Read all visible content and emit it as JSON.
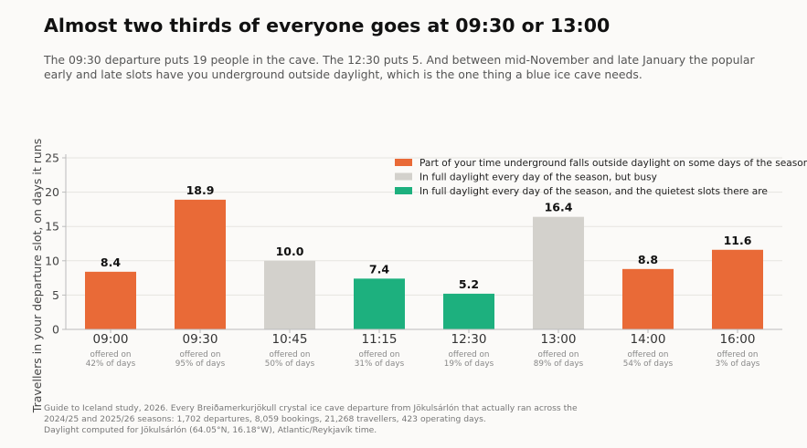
{
  "header": {
    "title": "Almost two thirds of everyone goes at 09:30 or 13:00",
    "subtitle_lines": [
      "The 09:30 departure puts 19 people in the cave. The 12:30 puts 5. And between mid-November and late January the popular",
      "early and late slots have you underground outside daylight, which is the one thing a blue ice cave needs."
    ]
  },
  "footer": {
    "lines": [
      "Guide to Iceland study, 2026. Every Breiðamerkurjökull crystal ice cave departure from Jökulsárlón that actually ran across the",
      "2024/25 and 2025/26 seasons: 1,702 departures, 8,059 bookings, 21,268 travellers, 423 operating days.",
      "Daylight computed for Jökulsárlón (64.05°N, 16.18°W), Atlantic/Reykjavík time."
    ]
  },
  "colors": {
    "outside_daylight": "#e96a37",
    "busy": "#d3d1cc",
    "quiet": "#1db07e",
    "grid": "#e6e4e0",
    "axis": "#bbbbbb"
  },
  "chart_data": {
    "type": "bar",
    "ylabel": "Travellers in your departure slot, on days it runs",
    "xlabel": "",
    "ylim": [
      0,
      25
    ],
    "yticks": [
      0,
      5,
      10,
      15,
      20,
      25
    ],
    "grid": true,
    "legend_position": "top-right",
    "categories": [
      "09:00",
      "09:30",
      "10:45",
      "11:15",
      "12:30",
      "13:00",
      "14:00",
      "16:00"
    ],
    "values": [
      8.4,
      18.9,
      10.0,
      7.4,
      5.2,
      16.4,
      8.8,
      11.6
    ],
    "value_labels": [
      "8.4",
      "18.9",
      "10.0",
      "7.4",
      "5.2",
      "16.4",
      "8.8",
      "11.6"
    ],
    "groups": [
      "outside_daylight",
      "outside_daylight",
      "busy",
      "quiet",
      "quiet",
      "busy",
      "outside_daylight",
      "outside_daylight"
    ],
    "offered_lines": [
      [
        "offered on",
        "42% of days"
      ],
      [
        "offered on",
        "95% of days"
      ],
      [
        "offered on",
        "50% of days"
      ],
      [
        "offered on",
        "31% of days"
      ],
      [
        "offered on",
        "19% of days"
      ],
      [
        "offered on",
        "89% of days"
      ],
      [
        "offered on",
        "54% of days"
      ],
      [
        "offered on",
        "3% of days"
      ]
    ],
    "legend": [
      {
        "key": "outside_daylight",
        "label": "Part of your time underground falls outside daylight on some days of the season"
      },
      {
        "key": "busy",
        "label": "In full daylight every day of the season, but busy"
      },
      {
        "key": "quiet",
        "label": "In full daylight every day of the season, and the quietest slots there are"
      }
    ]
  }
}
